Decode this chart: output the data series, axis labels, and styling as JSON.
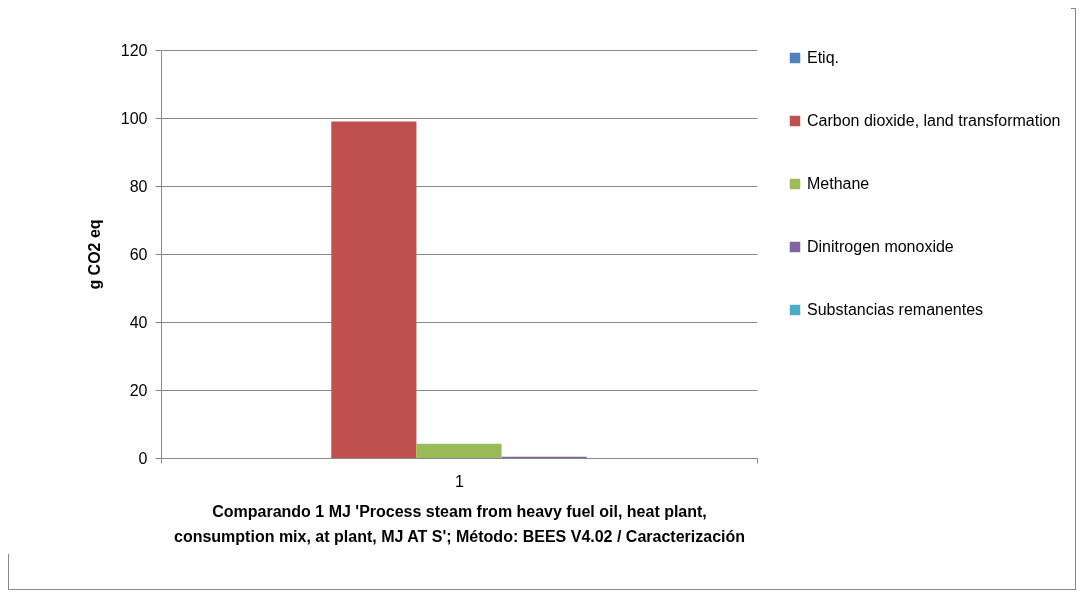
{
  "chart_data": {
    "type": "bar",
    "xlabel": "Comparando 1 MJ 'Process steam from heavy fuel oil, heat plant,\nconsumption mix, at plant, MJ AT S';  Método: BEES V4.02 / Caracterización",
    "ylabel": "g CO2 eq",
    "categories": [
      "1"
    ],
    "series": [
      {
        "name": "Etiq.",
        "color": "#4f81bd",
        "values": [
          0
        ]
      },
      {
        "name": "Carbon dioxide, land transformation",
        "color": "#c0504d",
        "values": [
          99
        ]
      },
      {
        "name": "Methane",
        "color": "#9bbb59",
        "values": [
          4.2
        ]
      },
      {
        "name": "Dinitrogen monoxide",
        "color": "#8064a2",
        "values": [
          0.4
        ]
      },
      {
        "name": "Substancias remanentes",
        "color": "#4bacc6",
        "values": [
          0
        ]
      }
    ],
    "ylim": [
      0,
      120
    ],
    "yticks": [
      0,
      20,
      40,
      60,
      80,
      100,
      120
    ],
    "grid": "y",
    "legend": "right"
  }
}
